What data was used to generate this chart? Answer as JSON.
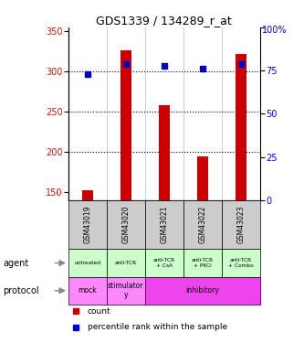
{
  "title": "GDS1339 / 134289_r_at",
  "samples": [
    "GSM43019",
    "GSM43020",
    "GSM43021",
    "GSM43022",
    "GSM43023"
  ],
  "count_values": [
    152,
    327,
    258,
    194,
    322
  ],
  "percentile_values": [
    73,
    79,
    78,
    76,
    79
  ],
  "ylim_left": [
    140,
    355
  ],
  "ylim_right": [
    0,
    100
  ],
  "yticks_left": [
    150,
    200,
    250,
    300,
    350
  ],
  "yticks_right": [
    0,
    25,
    50,
    75,
    100
  ],
  "bar_color": "#cc0000",
  "dot_color": "#0000cc",
  "agent_labels": [
    "untreated",
    "anti-TCR",
    "anti-TCR\n+ CsA",
    "anti-TCR\n+ PKCi",
    "anti-TCR\n+ Combo"
  ],
  "agent_bg_color": "#ccffcc",
  "proto_configs": [
    {
      "label": "mock",
      "start": 0,
      "end": 1,
      "color": "#ff88ff"
    },
    {
      "label": "stimulator\ny",
      "start": 1,
      "end": 2,
      "color": "#ff88ff"
    },
    {
      "label": "inhibitory",
      "start": 2,
      "end": 5,
      "color": "#ee44ee"
    }
  ],
  "sample_bg_color": "#cccccc",
  "hline_vals": [
    200,
    250,
    300
  ]
}
